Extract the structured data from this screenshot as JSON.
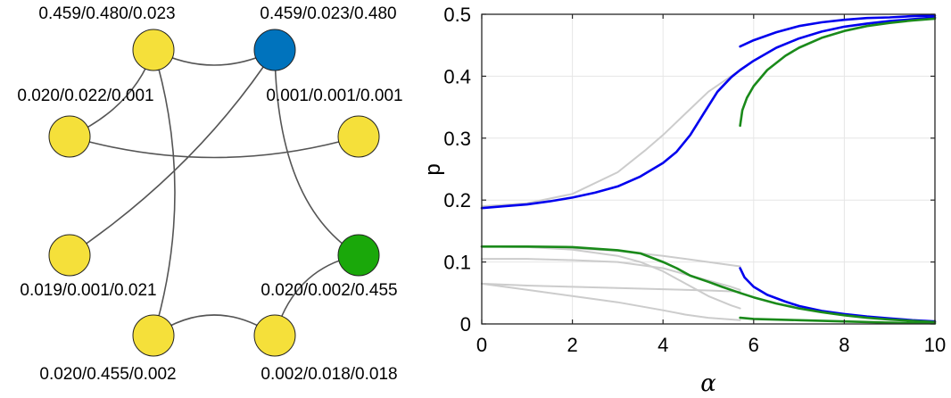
{
  "graph": {
    "nodes": [
      {
        "id": "n1",
        "color": "#f5e03a",
        "label": "0.459/0.480/0.023"
      },
      {
        "id": "n2",
        "color": "#0073bd",
        "label": "0.459/0.023/0.480"
      },
      {
        "id": "n3",
        "color": "#f5e03a",
        "label": "0.020/0.022/0.001"
      },
      {
        "id": "n4",
        "color": "#f5e03a",
        "label": "0.001/0.001/0.001"
      },
      {
        "id": "n5",
        "color": "#f5e03a",
        "label": "0.019/0.001/0.021"
      },
      {
        "id": "n6",
        "color": "#1aa80a",
        "label": "0.020/0.002/0.455"
      },
      {
        "id": "n7",
        "color": "#f5e03a",
        "label": "0.020/0.455/0.002"
      },
      {
        "id": "n8",
        "color": "#f5e03a",
        "label": "0.002/0.018/0.018"
      }
    ],
    "edges": [
      [
        "n1",
        "n2"
      ],
      [
        "n1",
        "n3"
      ],
      [
        "n1",
        "n7"
      ],
      [
        "n2",
        "n5"
      ],
      [
        "n2",
        "n6"
      ],
      [
        "n3",
        "n4"
      ],
      [
        "n7",
        "n8"
      ],
      [
        "n8",
        "n6"
      ]
    ],
    "edge_color": "#555555"
  },
  "chart_data": {
    "type": "line",
    "title": "",
    "xlabel": "α",
    "ylabel": "p",
    "xlim": [
      0,
      10
    ],
    "ylim": [
      0,
      0.5
    ],
    "xticks": [
      0,
      2,
      4,
      6,
      8,
      10
    ],
    "yticks": [
      0,
      0.1,
      0.2,
      0.3,
      0.4,
      0.5
    ],
    "grid": true,
    "series": [
      {
        "color": "#cccccc",
        "points": [
          [
            0,
            0.19
          ],
          [
            1,
            0.195
          ],
          [
            2,
            0.21
          ],
          [
            3,
            0.245
          ],
          [
            3.6,
            0.28
          ],
          [
            4,
            0.305
          ],
          [
            4.5,
            0.34
          ],
          [
            5,
            0.375
          ],
          [
            5.5,
            0.4
          ],
          [
            5.7,
            0.41
          ]
        ]
      },
      {
        "color": "#cccccc",
        "points": [
          [
            0,
            0.125
          ],
          [
            1,
            0.124
          ],
          [
            2,
            0.12
          ],
          [
            3,
            0.11
          ],
          [
            3.5,
            0.1
          ],
          [
            4,
            0.085
          ],
          [
            4.5,
            0.065
          ],
          [
            5,
            0.045
          ],
          [
            5.5,
            0.03
          ],
          [
            5.7,
            0.025
          ]
        ]
      },
      {
        "color": "#cccccc",
        "points": [
          [
            0,
            0.125
          ],
          [
            1,
            0.124
          ],
          [
            2,
            0.122
          ],
          [
            3,
            0.118
          ],
          [
            4,
            0.11
          ],
          [
            4.5,
            0.105
          ],
          [
            5,
            0.1
          ],
          [
            5.5,
            0.095
          ],
          [
            5.7,
            0.093
          ]
        ]
      },
      {
        "color": "#cccccc",
        "points": [
          [
            0,
            0.105
          ],
          [
            1,
            0.105
          ],
          [
            2,
            0.103
          ],
          [
            3,
            0.1
          ],
          [
            4,
            0.09
          ],
          [
            4.5,
            0.08
          ],
          [
            5,
            0.07
          ],
          [
            5.5,
            0.06
          ],
          [
            5.7,
            0.055
          ]
        ]
      },
      {
        "color": "#cccccc",
        "points": [
          [
            0,
            0.065
          ],
          [
            1,
            0.062
          ],
          [
            2,
            0.06
          ],
          [
            3,
            0.058
          ],
          [
            4,
            0.056
          ],
          [
            5,
            0.054
          ],
          [
            5.7,
            0.052
          ]
        ]
      },
      {
        "color": "#cccccc",
        "points": [
          [
            0,
            0.065
          ],
          [
            1,
            0.055
          ],
          [
            2,
            0.045
          ],
          [
            3,
            0.035
          ],
          [
            4,
            0.022
          ],
          [
            4.5,
            0.015
          ],
          [
            5,
            0.01
          ],
          [
            5.7,
            0.006
          ]
        ]
      },
      {
        "color": "#0000ee",
        "points": [
          [
            0,
            0.187
          ],
          [
            0.5,
            0.19
          ],
          [
            1,
            0.193
          ],
          [
            1.5,
            0.198
          ],
          [
            2,
            0.204
          ],
          [
            2.5,
            0.212
          ],
          [
            3,
            0.222
          ],
          [
            3.5,
            0.238
          ],
          [
            4,
            0.26
          ],
          [
            4.3,
            0.278
          ],
          [
            4.6,
            0.305
          ],
          [
            4.9,
            0.34
          ],
          [
            5.2,
            0.375
          ],
          [
            5.5,
            0.398
          ],
          [
            5.7,
            0.41
          ],
          [
            6,
            0.425
          ],
          [
            6.5,
            0.446
          ],
          [
            7,
            0.461
          ],
          [
            7.5,
            0.472
          ],
          [
            8,
            0.48
          ],
          [
            8.5,
            0.485
          ],
          [
            9,
            0.489
          ],
          [
            9.5,
            0.492
          ],
          [
            10,
            0.495
          ]
        ]
      },
      {
        "color": "#0000ee",
        "points": [
          [
            5.7,
            0.448
          ],
          [
            6,
            0.458
          ],
          [
            6.5,
            0.471
          ],
          [
            7,
            0.481
          ],
          [
            7.5,
            0.487
          ],
          [
            8,
            0.491
          ],
          [
            8.5,
            0.494
          ],
          [
            9,
            0.495
          ],
          [
            9.5,
            0.497
          ],
          [
            10,
            0.498
          ]
        ]
      },
      {
        "color": "#0000ee",
        "points": [
          [
            5.7,
            0.09
          ],
          [
            5.8,
            0.075
          ],
          [
            6,
            0.06
          ],
          [
            6.3,
            0.047
          ],
          [
            6.7,
            0.036
          ],
          [
            7,
            0.029
          ],
          [
            7.5,
            0.021
          ],
          [
            8,
            0.016
          ],
          [
            8.5,
            0.012
          ],
          [
            9,
            0.009
          ],
          [
            9.5,
            0.006
          ],
          [
            10,
            0.004
          ]
        ]
      },
      {
        "color": "#1a8a1a",
        "points": [
          [
            0,
            0.125
          ],
          [
            1,
            0.125
          ],
          [
            2,
            0.124
          ],
          [
            3,
            0.119
          ],
          [
            3.5,
            0.114
          ],
          [
            4,
            0.1
          ],
          [
            4.3,
            0.09
          ],
          [
            4.6,
            0.078
          ],
          [
            5,
            0.068
          ],
          [
            5.3,
            0.06
          ],
          [
            5.7,
            0.05
          ],
          [
            6,
            0.043
          ],
          [
            6.5,
            0.033
          ],
          [
            7,
            0.025
          ],
          [
            7.5,
            0.019
          ],
          [
            8,
            0.014
          ],
          [
            8.5,
            0.01
          ],
          [
            9,
            0.007
          ],
          [
            9.5,
            0.005
          ],
          [
            10,
            0.003
          ]
        ]
      },
      {
        "color": "#1a8a1a",
        "points": [
          [
            5.7,
            0.32
          ],
          [
            5.75,
            0.345
          ],
          [
            5.85,
            0.365
          ],
          [
            6,
            0.384
          ],
          [
            6.3,
            0.41
          ],
          [
            6.7,
            0.433
          ],
          [
            7,
            0.446
          ],
          [
            7.5,
            0.462
          ],
          [
            8,
            0.473
          ],
          [
            8.5,
            0.481
          ],
          [
            9,
            0.486
          ],
          [
            9.5,
            0.49
          ],
          [
            10,
            0.493
          ]
        ]
      },
      {
        "color": "#1a8a1a",
        "points": [
          [
            5.7,
            0.01
          ],
          [
            6,
            0.008
          ],
          [
            7,
            0.006
          ],
          [
            8,
            0.004
          ],
          [
            9,
            0.002
          ],
          [
            10,
            0.001
          ]
        ]
      }
    ]
  }
}
